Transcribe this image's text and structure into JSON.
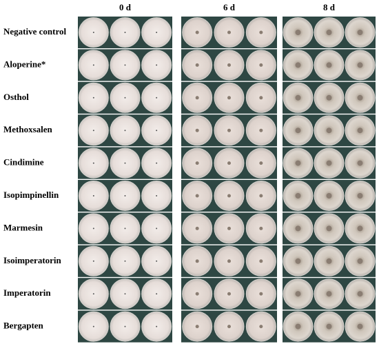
{
  "columns": [
    "0 d",
    "6 d",
    "8 d"
  ],
  "rows": [
    "Negative control",
    "Aloperine*",
    "Osthol",
    "Methoxsalen",
    "Cindimine",
    "Isopimpinellin",
    "Marmesin",
    "Isoimperatorin",
    "Imperatorin",
    "Bergapten"
  ]
}
